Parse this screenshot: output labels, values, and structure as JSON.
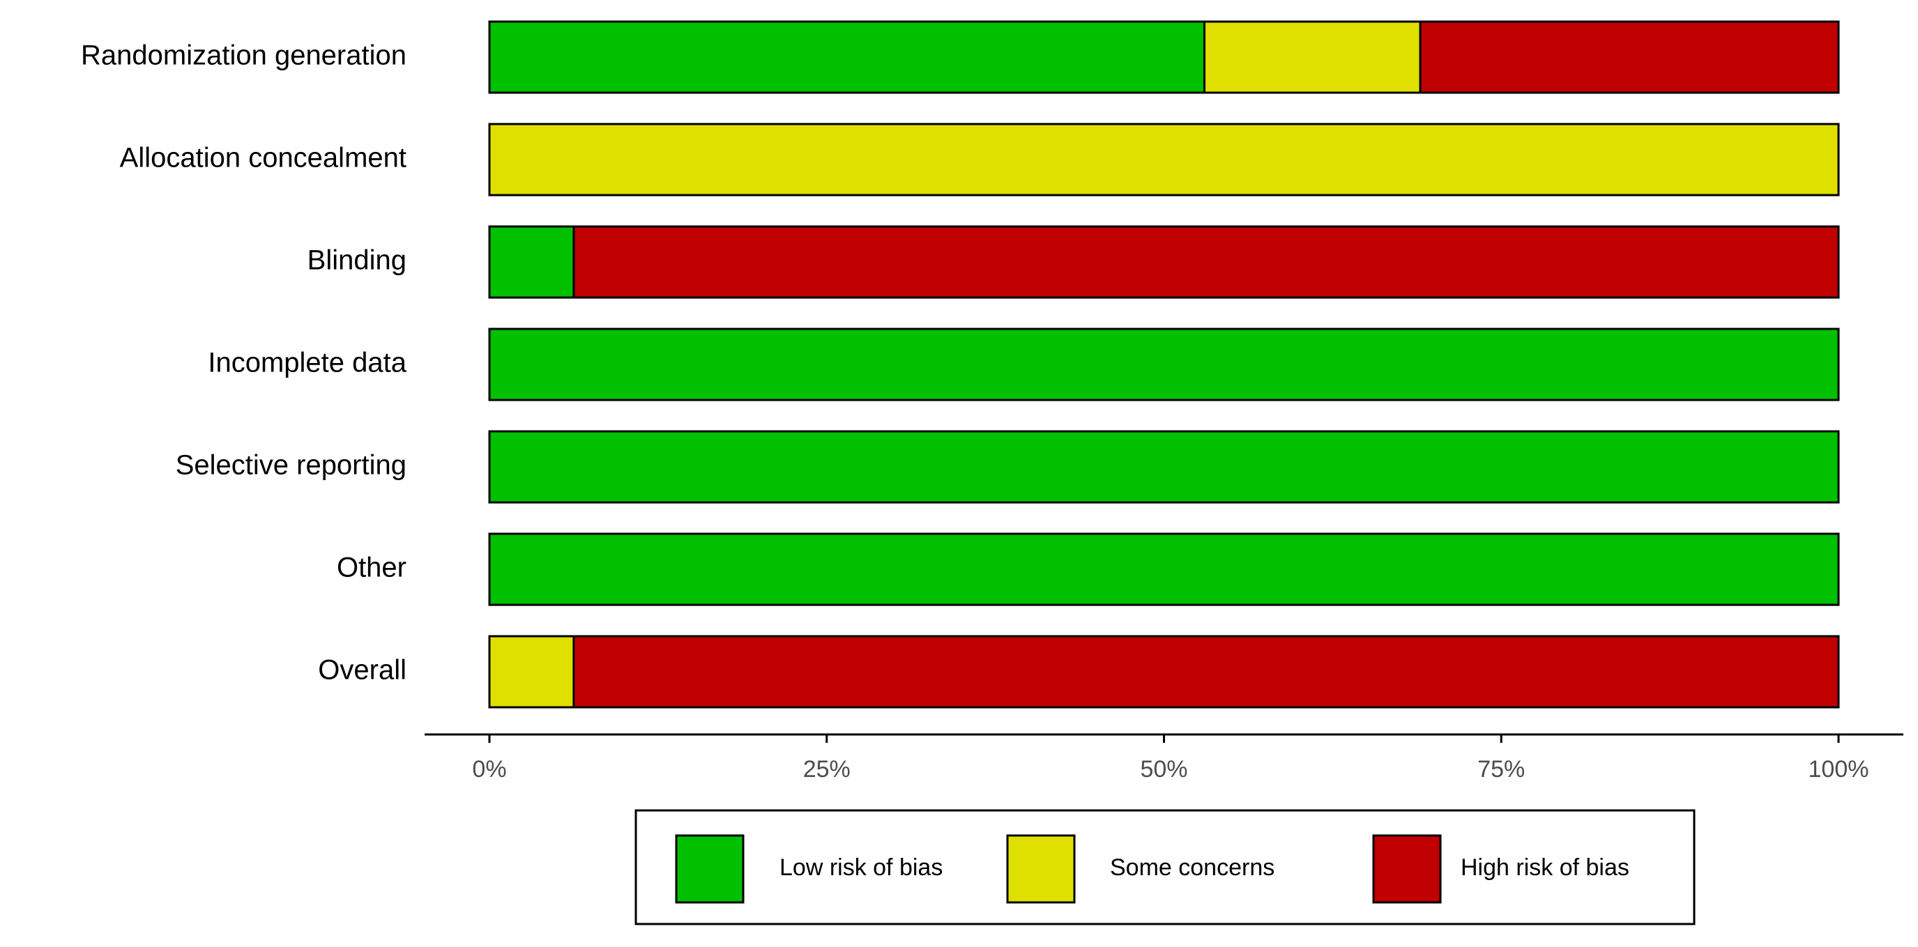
{
  "colors": {
    "low": "#00c000",
    "some": "#e0e000",
    "high": "#c00000",
    "outline": "#000000",
    "tick_label": "#4d4d4d",
    "category_label": "#000000"
  },
  "chart_data": {
    "type": "bar",
    "orientation": "horizontal",
    "stacked": true,
    "categories": [
      "Randomization generation",
      "Allocation concealment",
      "Blinding",
      "Incomplete data",
      "Selective reporting",
      "Other",
      "Overall"
    ],
    "series": [
      {
        "name": "Low risk of bias",
        "key": "low",
        "values": [
          0.53,
          0.0,
          0.0625,
          1.0,
          1.0,
          1.0,
          0.0
        ]
      },
      {
        "name": "Some concerns",
        "key": "some",
        "values": [
          0.16,
          1.0,
          0.0,
          0.0,
          0.0,
          0.0,
          0.0625
        ]
      },
      {
        "name": "High risk of bias",
        "key": "high",
        "values": [
          0.31,
          0.0,
          0.9375,
          0.0,
          0.0,
          0.0,
          0.9375
        ]
      }
    ],
    "xlim": [
      0,
      1
    ],
    "x_ticks": [
      0,
      0.25,
      0.5,
      0.75,
      1.0
    ],
    "x_tick_labels": [
      "0%",
      "25%",
      "50%",
      "75%",
      "100%"
    ],
    "title": "",
    "xlabel": "",
    "ylabel": "",
    "grid": false,
    "legend_position": "bottom"
  }
}
